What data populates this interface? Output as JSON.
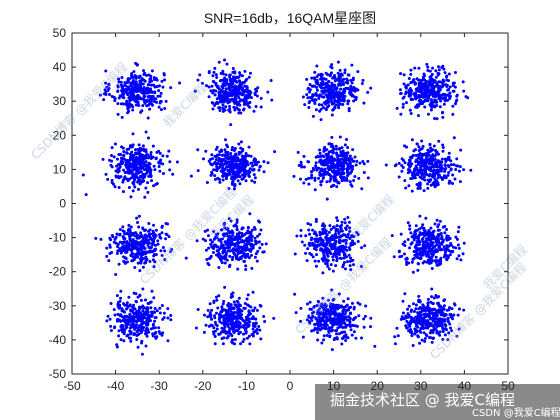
{
  "chart_data": {
    "type": "scatter",
    "title": "SNR=16db，16QAM星座图",
    "xlabel": "",
    "ylabel": "",
    "xlim": [
      -50,
      50
    ],
    "ylim": [
      -50,
      50
    ],
    "xticks": [
      -50,
      -40,
      -30,
      -20,
      -10,
      0,
      10,
      20,
      30,
      40,
      50
    ],
    "yticks": [
      -50,
      -40,
      -30,
      -20,
      -10,
      0,
      10,
      20,
      30,
      40,
      50
    ],
    "grid": false,
    "marker_color": "#0000ff",
    "constellation_centers": [
      [
        -35,
        33
      ],
      [
        -13,
        33
      ],
      [
        10,
        33
      ],
      [
        32,
        33
      ],
      [
        -35,
        11
      ],
      [
        -13,
        11
      ],
      [
        10,
        11
      ],
      [
        32,
        11
      ],
      [
        -35,
        -12
      ],
      [
        -13,
        -12
      ],
      [
        10,
        -12
      ],
      [
        32,
        -12
      ],
      [
        -35,
        -34
      ],
      [
        -13,
        -34
      ],
      [
        10,
        -34
      ],
      [
        32,
        -34
      ]
    ],
    "noise_std": 3,
    "points_per_cluster": 320
  },
  "watermark": {
    "text1": "CSDN博客 @我爱C编程",
    "text2": "我爱C编程"
  },
  "footer": {
    "brand": "掘金技术社区 @ 我爱C编程",
    "small": "CSDN @我爱C编程"
  }
}
